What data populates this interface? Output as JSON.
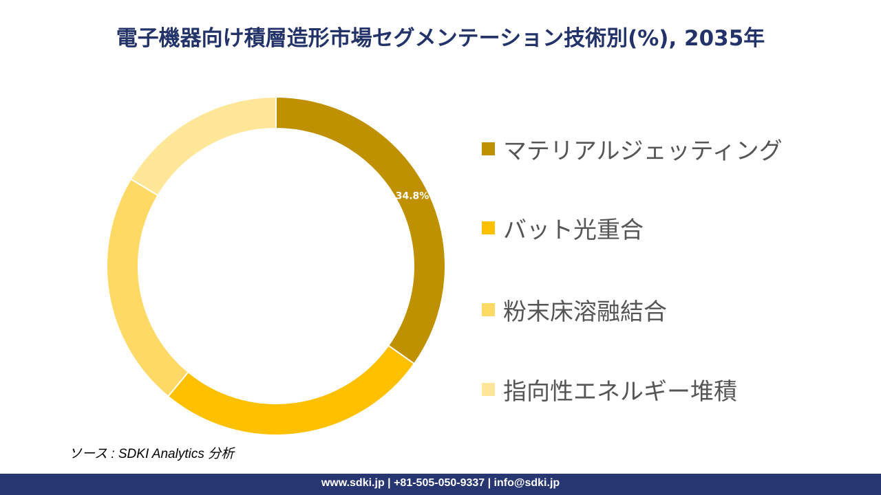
{
  "title": "電子機器向け積層造形市場セグメンテーション技術別(%), 2035年",
  "chart_data": {
    "type": "pie",
    "donut": true,
    "title": "電子機器向け積層造形市場セグメンテーション技術別(%), 2035年",
    "categories": [
      "マテリアルジェッティング",
      "バット光重合",
      "粉末床溶融結合",
      "指向性エネルギー堆積"
    ],
    "values": [
      34.8,
      26.2,
      22.6,
      16.4
    ],
    "data_labels": [
      "34.8%",
      "",
      "",
      ""
    ],
    "colors": [
      "#BF9000",
      "#FFC000",
      "#FFD966",
      "#FFE699"
    ],
    "legend_placement": "right"
  },
  "source": "ソース : SDKI Analytics 分析",
  "footer": "www.sdki.jp | +81-505-050-9337 | info@sdki.jp"
}
